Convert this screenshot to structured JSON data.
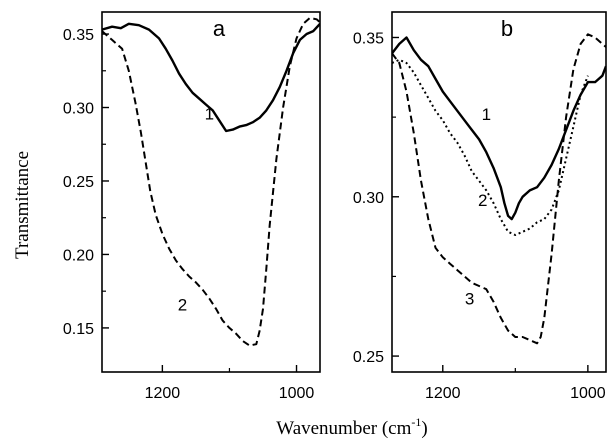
{
  "figure": {
    "ylabel": "Transmittance",
    "xlabel_main": "Wavenumber (cm",
    "xlabel_sup": "-1",
    "xlabel_close": ")"
  },
  "chart_data": [
    {
      "type": "line",
      "panel_label": "a",
      "xlim": [
        1290,
        965
      ],
      "ylim": [
        0.12,
        0.365
      ],
      "x_reversed": true,
      "xticks": [
        1200,
        1000
      ],
      "xtick_labels": [
        "1200",
        "1000"
      ],
      "yticks": [
        0.15,
        0.2,
        0.25,
        0.3,
        0.35
      ],
      "ytick_labels": [
        "0.15",
        "0.20",
        "0.25",
        "0.30",
        "0.35"
      ],
      "series": [
        {
          "name": "1",
          "style": "solid",
          "x": [
            1290,
            1275,
            1262,
            1250,
            1235,
            1220,
            1205,
            1195,
            1185,
            1175,
            1165,
            1155,
            1145,
            1135,
            1125,
            1115,
            1105,
            1095,
            1085,
            1075,
            1065,
            1055,
            1045,
            1035,
            1025,
            1015,
            1005,
            995,
            985,
            975,
            965
          ],
          "y": [
            0.353,
            0.355,
            0.354,
            0.357,
            0.356,
            0.353,
            0.347,
            0.34,
            0.332,
            0.323,
            0.316,
            0.31,
            0.306,
            0.302,
            0.298,
            0.291,
            0.284,
            0.285,
            0.287,
            0.288,
            0.29,
            0.293,
            0.298,
            0.305,
            0.314,
            0.325,
            0.337,
            0.346,
            0.35,
            0.352,
            0.357
          ]
        },
        {
          "name": "2",
          "style": "dashed",
          "x": [
            1290,
            1275,
            1260,
            1250,
            1240,
            1232,
            1225,
            1218,
            1210,
            1200,
            1190,
            1180,
            1170,
            1160,
            1150,
            1140,
            1130,
            1120,
            1110,
            1100,
            1090,
            1080,
            1070,
            1060,
            1055,
            1050,
            1045,
            1040,
            1030,
            1020,
            1010,
            1000,
            990,
            980,
            970,
            965
          ],
          "y": [
            0.352,
            0.346,
            0.34,
            0.325,
            0.303,
            0.283,
            0.263,
            0.243,
            0.227,
            0.214,
            0.204,
            0.196,
            0.19,
            0.185,
            0.181,
            0.176,
            0.17,
            0.163,
            0.155,
            0.15,
            0.146,
            0.141,
            0.138,
            0.139,
            0.148,
            0.163,
            0.19,
            0.22,
            0.265,
            0.3,
            0.328,
            0.347,
            0.357,
            0.361,
            0.36,
            0.358
          ]
        }
      ],
      "annotations": [
        {
          "text": "1",
          "x": 1130,
          "y": 0.296
        },
        {
          "text": "2",
          "x": 1170,
          "y": 0.166
        }
      ]
    },
    {
      "type": "line",
      "panel_label": "b",
      "xlim": [
        1270,
        975
      ],
      "ylim": [
        0.245,
        0.358
      ],
      "x_reversed": true,
      "xticks": [
        1200,
        1000
      ],
      "xtick_labels": [
        "1200",
        "1000"
      ],
      "yticks": [
        0.25,
        0.3,
        0.35
      ],
      "ytick_labels": [
        "0.25",
        "0.30",
        "0.35"
      ],
      "series": [
        {
          "name": "1",
          "style": "solid",
          "x": [
            1270,
            1260,
            1250,
            1240,
            1230,
            1220,
            1210,
            1200,
            1190,
            1180,
            1170,
            1160,
            1150,
            1140,
            1130,
            1120,
            1115,
            1110,
            1105,
            1100,
            1095,
            1090,
            1080,
            1070,
            1060,
            1050,
            1040,
            1030,
            1020,
            1010,
            1000,
            990,
            980,
            975
          ],
          "y": [
            0.345,
            0.348,
            0.35,
            0.346,
            0.343,
            0.341,
            0.337,
            0.333,
            0.33,
            0.327,
            0.324,
            0.321,
            0.318,
            0.314,
            0.309,
            0.303,
            0.298,
            0.294,
            0.293,
            0.295,
            0.298,
            0.3,
            0.302,
            0.303,
            0.306,
            0.31,
            0.315,
            0.321,
            0.327,
            0.332,
            0.336,
            0.336,
            0.338,
            0.341
          ]
        },
        {
          "name": "2",
          "style": "dotted",
          "x": [
            1270,
            1260,
            1250,
            1240,
            1230,
            1220,
            1210,
            1200,
            1190,
            1180,
            1170,
            1160,
            1150,
            1140,
            1130,
            1120,
            1110,
            1100,
            1090,
            1080,
            1070,
            1060,
            1050,
            1040,
            1030,
            1020,
            1010,
            1000
          ],
          "y": [
            0.342,
            0.343,
            0.342,
            0.339,
            0.335,
            0.331,
            0.327,
            0.324,
            0.32,
            0.317,
            0.313,
            0.308,
            0.305,
            0.302,
            0.298,
            0.293,
            0.289,
            0.288,
            0.289,
            0.29,
            0.292,
            0.293,
            0.296,
            0.302,
            0.312,
            0.322,
            0.332,
            0.338
          ]
        },
        {
          "name": "3",
          "style": "dashed",
          "x": [
            1270,
            1260,
            1250,
            1240,
            1230,
            1220,
            1210,
            1200,
            1190,
            1180,
            1170,
            1160,
            1150,
            1140,
            1130,
            1120,
            1110,
            1100,
            1090,
            1080,
            1070,
            1065,
            1060,
            1050,
            1040,
            1030,
            1020,
            1010,
            1000,
            990,
            980,
            975
          ],
          "y": [
            0.345,
            0.342,
            0.333,
            0.32,
            0.305,
            0.293,
            0.284,
            0.281,
            0.279,
            0.277,
            0.275,
            0.273,
            0.272,
            0.271,
            0.267,
            0.262,
            0.258,
            0.256,
            0.256,
            0.255,
            0.254,
            0.256,
            0.262,
            0.282,
            0.305,
            0.325,
            0.34,
            0.348,
            0.351,
            0.35,
            0.348,
            0.347
          ]
        }
      ],
      "annotations": [
        {
          "text": "1",
          "x": 1140,
          "y": 0.326
        },
        {
          "text": "2",
          "x": 1145,
          "y": 0.299
        },
        {
          "text": "3",
          "x": 1163,
          "y": 0.268
        }
      ]
    }
  ]
}
